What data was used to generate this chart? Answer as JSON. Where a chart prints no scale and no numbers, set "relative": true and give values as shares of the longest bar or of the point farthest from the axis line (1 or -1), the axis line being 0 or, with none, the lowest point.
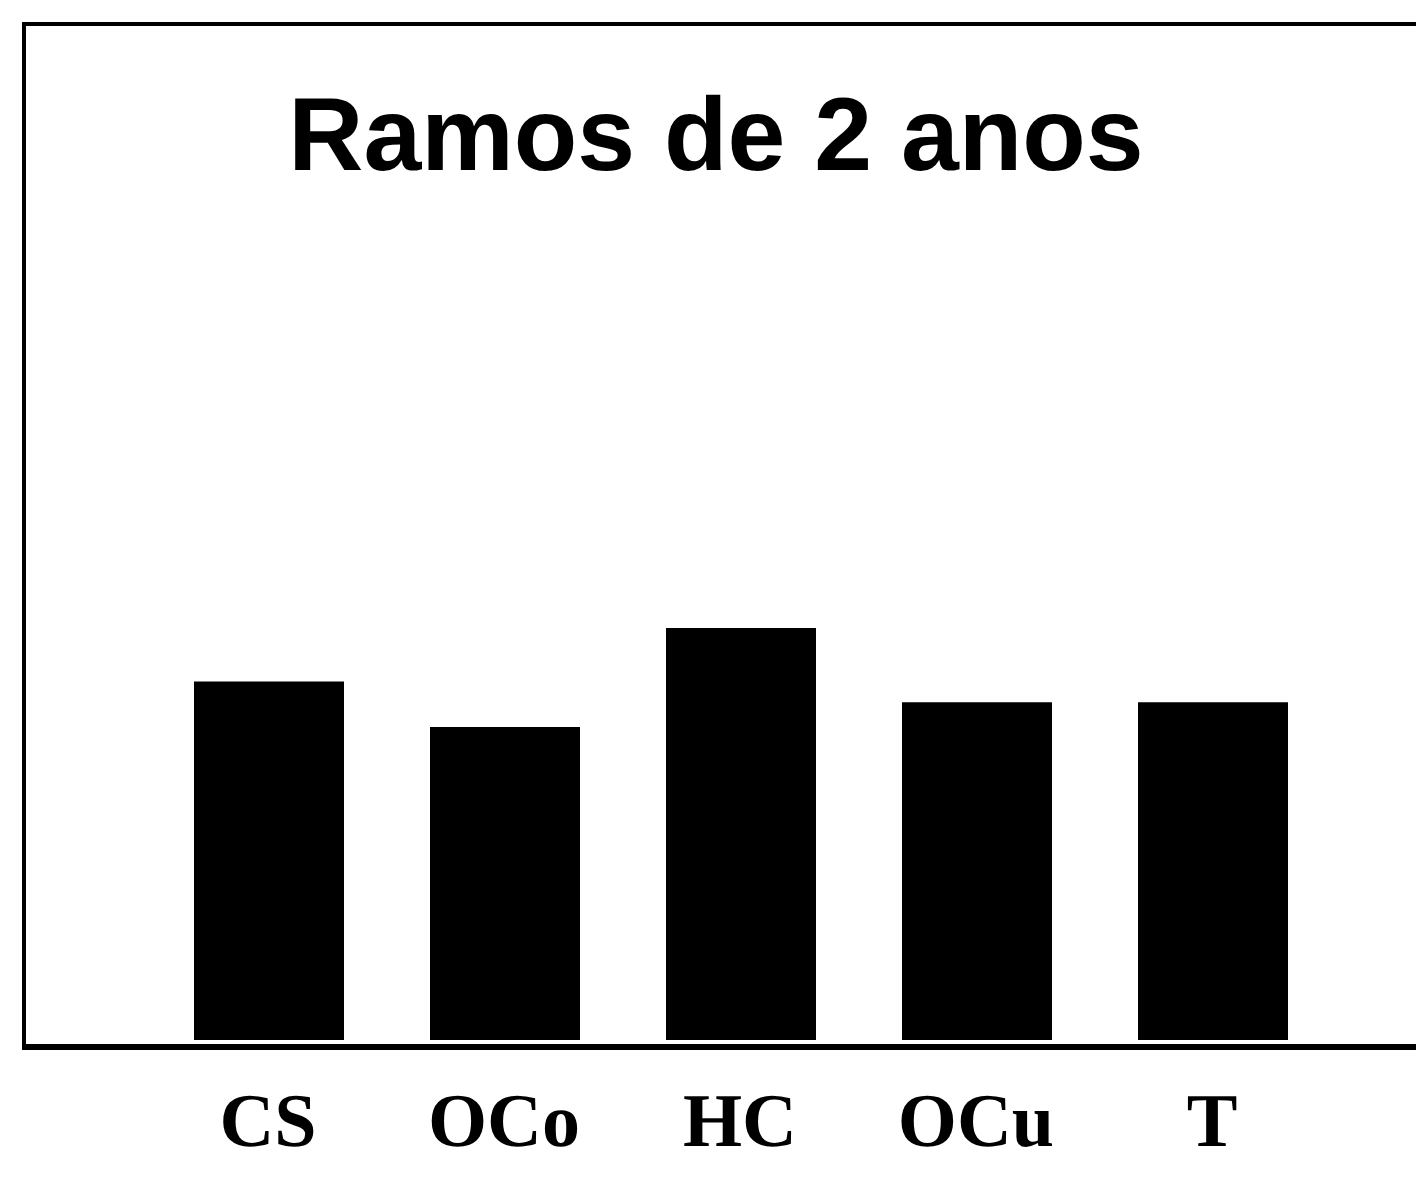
{
  "chart_data": {
    "type": "bar",
    "title": "Ramos de 2 anos",
    "relative": true,
    "categories": [
      "CS",
      "OCo",
      "HC",
      "OCu",
      "T"
    ],
    "values": [
      0.87,
      0.76,
      1,
      0.82,
      0.82
    ],
    "color": "#000000",
    "grid": false,
    "legend": false
  }
}
